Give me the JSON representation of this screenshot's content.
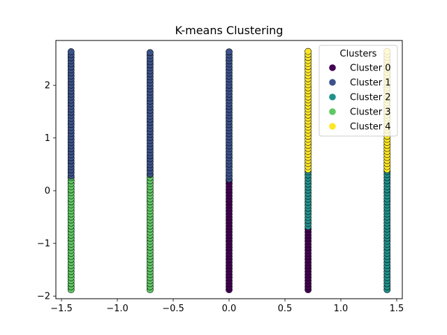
{
  "chart_data": {
    "type": "scatter",
    "title": "K-means Clustering",
    "xlabel": "",
    "ylabel": "",
    "xlim": [
      -1.55,
      1.55
    ],
    "ylim": [
      -2.05,
      2.85
    ],
    "x_ticks": [
      -1.5,
      -1.0,
      -0.5,
      0.0,
      0.5,
      1.0,
      1.5
    ],
    "x_tick_labels": [
      "−1.5",
      "−1.0",
      "−0.5",
      "0.0",
      "0.5",
      "1.0",
      "1.5"
    ],
    "y_ticks": [
      -2,
      -1,
      0,
      1,
      2
    ],
    "y_tick_labels": [
      "−2",
      "−1",
      "0",
      "1",
      "2"
    ],
    "grid": false,
    "legend": {
      "title": "Clusters",
      "placement": "top-right",
      "entries": [
        {
          "label": "Cluster 0",
          "color": "#440154"
        },
        {
          "label": "Cluster 1",
          "color": "#3b528b"
        },
        {
          "label": "Cluster 2",
          "color": "#21918c"
        },
        {
          "label": "Cluster 3",
          "color": "#5ec962"
        },
        {
          "label": "Cluster 4",
          "color": "#fde725"
        }
      ]
    },
    "point_edge_color": "#000000",
    "y_step": 0.0575,
    "columns": [
      {
        "x": -1.414,
        "segments": [
          {
            "cluster": 3,
            "y_from": -1.88,
            "y_to": 0.28
          },
          {
            "cluster": 1,
            "y_from": 0.28,
            "y_to": 2.66
          }
        ]
      },
      {
        "x": -0.707,
        "segments": [
          {
            "cluster": 3,
            "y_from": -1.88,
            "y_to": 0.32
          },
          {
            "cluster": 1,
            "y_from": 0.32,
            "y_to": 2.66
          }
        ]
      },
      {
        "x": 0.0,
        "segments": [
          {
            "cluster": 0,
            "y_from": -1.88,
            "y_to": 0.22
          },
          {
            "cluster": 1,
            "y_from": 0.22,
            "y_to": 2.66
          }
        ]
      },
      {
        "x": 0.707,
        "segments": [
          {
            "cluster": 0,
            "y_from": -1.88,
            "y_to": -0.68
          },
          {
            "cluster": 2,
            "y_from": -0.68,
            "y_to": 0.4
          },
          {
            "cluster": 4,
            "y_from": 0.4,
            "y_to": 2.66
          }
        ]
      },
      {
        "x": 1.414,
        "segments": [
          {
            "cluster": 2,
            "y_from": -1.88,
            "y_to": 0.4
          },
          {
            "cluster": 4,
            "y_from": 0.4,
            "y_to": 2.66
          }
        ]
      }
    ]
  }
}
